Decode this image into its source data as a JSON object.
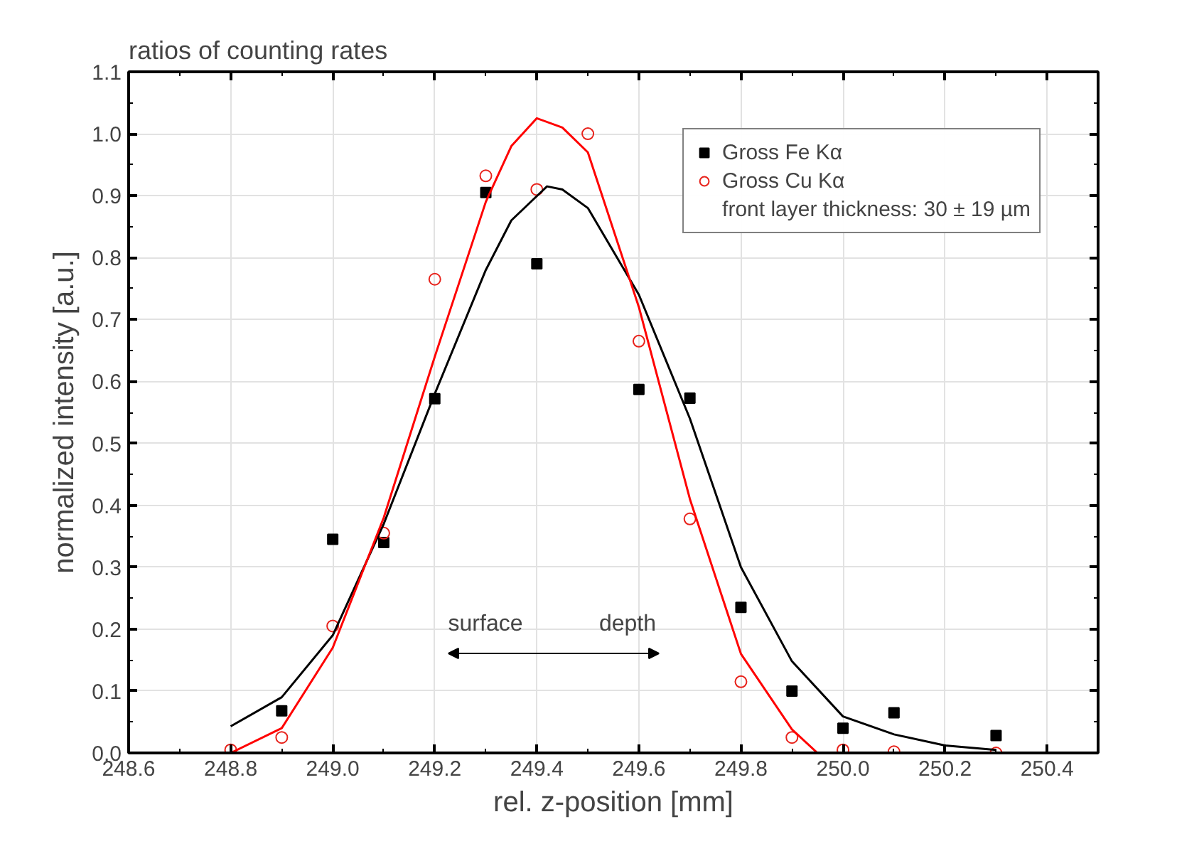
{
  "chart_data": {
    "type": "scatter",
    "title": "ratios of counting rates",
    "xlabel": "rel. z-position [mm]",
    "ylabel": "normalized intensity [a.u.]",
    "xlim": [
      248.6,
      250.5
    ],
    "ylim": [
      0,
      1.1
    ],
    "xticks": [
      248.6,
      248.8,
      {
        "value": 249.0,
        "label": "249.0"
      },
      249.2,
      249.4,
      249.6,
      249.8,
      {
        "value": 250.0,
        "label": "250.0"
      },
      250.2,
      250.4
    ],
    "yticks": [
      {
        "value": 0.0,
        "label": "0.0"
      },
      0.1,
      0.2,
      0.3,
      0.4,
      0.5,
      0.6,
      0.7,
      0.8,
      0.9,
      {
        "value": 1.0,
        "label": "1.0"
      },
      1.1
    ],
    "grid": true,
    "legend": "top right",
    "annotations": [
      "surface",
      "depth",
      "front layer thickness: 30 ± 19 µm"
    ],
    "series": [
      {
        "name": "Gross Fe Kα",
        "marker": "square",
        "color": "#000000",
        "x": [
          248.9,
          249.0,
          249.1,
          249.2,
          249.3,
          249.4,
          249.6,
          249.7,
          249.8,
          249.9,
          250.0,
          250.1,
          250.3
        ],
        "values": [
          0.068,
          0.345,
          0.34,
          0.572,
          0.905,
          0.79,
          0.587,
          0.573,
          0.235,
          0.1,
          0.04,
          0.065,
          0.028
        ]
      },
      {
        "name": "Gross Cu Kα",
        "marker": "circle",
        "color": "#e8221b",
        "x": [
          248.8,
          248.9,
          249.0,
          249.1,
          249.2,
          249.3,
          249.4,
          249.5,
          249.6,
          249.7,
          249.8,
          249.9,
          250.0,
          250.1,
          250.3
        ],
        "values": [
          0.005,
          0.025,
          0.205,
          0.355,
          0.765,
          0.932,
          0.91,
          1.0,
          0.665,
          0.378,
          0.115,
          0.025,
          0.005,
          0.002,
          0.0
        ]
      },
      {
        "type": "line",
        "marker": "none",
        "color": "#000000",
        "x": [
          248.8,
          248.9,
          249.0,
          249.1,
          249.2,
          249.3,
          249.35,
          249.42,
          249.45,
          249.5,
          249.6,
          249.7,
          249.8,
          249.9,
          250.0,
          250.1,
          250.2,
          250.3
        ],
        "values": [
          0.043,
          0.09,
          0.19,
          0.37,
          0.58,
          0.78,
          0.86,
          0.915,
          0.91,
          0.88,
          0.74,
          0.54,
          0.3,
          0.148,
          0.059,
          0.03,
          0.012,
          0.005
        ]
      },
      {
        "type": "line",
        "marker": "none",
        "color": "#ff0000",
        "x": [
          248.8,
          248.9,
          249.0,
          249.1,
          249.2,
          249.3,
          249.35,
          249.4,
          249.45,
          249.5,
          249.6,
          249.7,
          249.8,
          249.9,
          249.95
        ],
        "values": [
          0.0,
          0.04,
          0.17,
          0.38,
          0.64,
          0.89,
          0.98,
          1.025,
          1.01,
          0.97,
          0.72,
          0.41,
          0.16,
          0.038,
          0.0
        ]
      }
    ]
  }
}
